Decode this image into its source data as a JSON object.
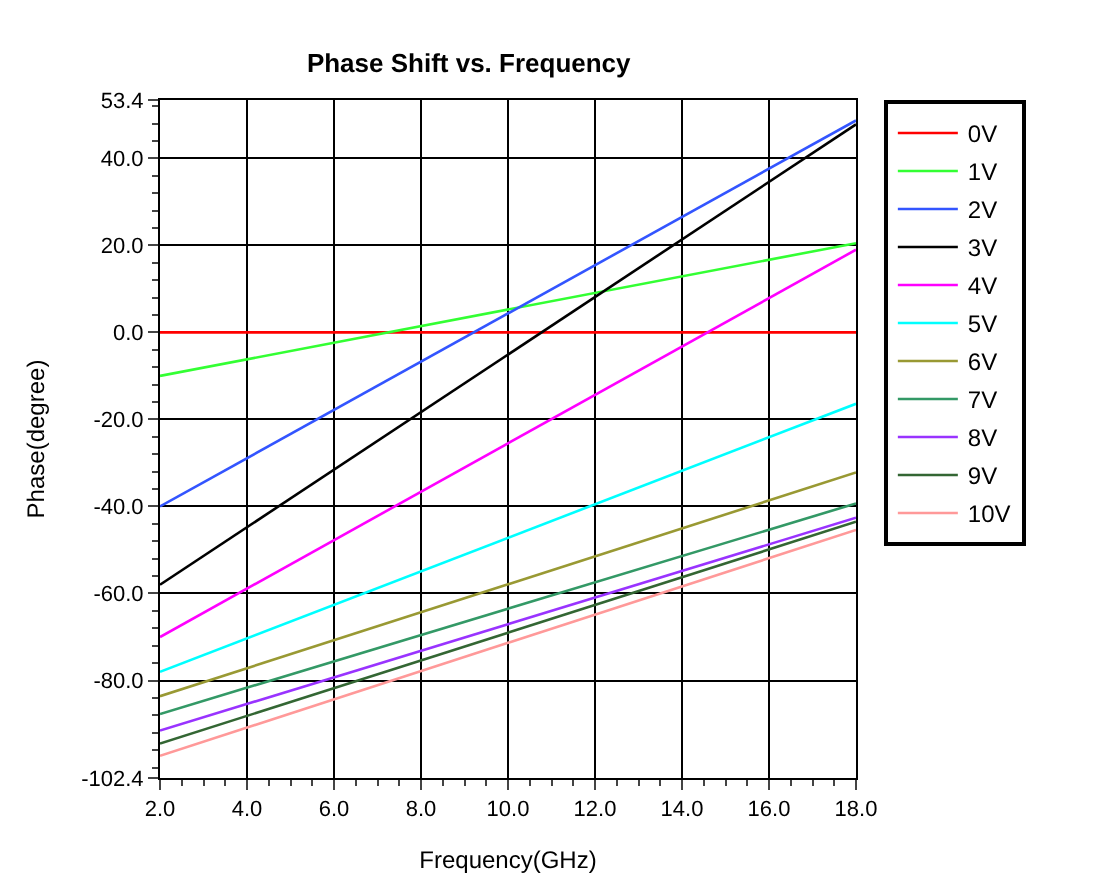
{
  "chart_data": {
    "type": "line",
    "title": "Phase Shift vs. Frequency",
    "xlabel": "Frequency(GHz)",
    "ylabel": "Phase(degree)",
    "x": [
      2,
      18
    ],
    "series": [
      {
        "name": "0V",
        "color": "#ff0000",
        "values": [
          0,
          0
        ]
      },
      {
        "name": "1V",
        "color": "#33ff33",
        "values": [
          -10,
          20.5
        ]
      },
      {
        "name": "2V",
        "color": "#3355ff",
        "values": [
          -40,
          48.7
        ]
      },
      {
        "name": "3V",
        "color": "#000000",
        "values": [
          -58,
          47.8
        ]
      },
      {
        "name": "4V",
        "color": "#ff00ff",
        "values": [
          -70,
          19
        ]
      },
      {
        "name": "5V",
        "color": "#00ffff",
        "values": [
          -78,
          -16.4
        ]
      },
      {
        "name": "6V",
        "color": "#999933",
        "values": [
          -83.6,
          -32.2
        ]
      },
      {
        "name": "7V",
        "color": "#339966",
        "values": [
          -87.7,
          -39.3
        ]
      },
      {
        "name": "8V",
        "color": "#9933ff",
        "values": [
          -91.5,
          -42.6
        ]
      },
      {
        "name": "9V",
        "color": "#336633",
        "values": [
          -94.5,
          -43.5
        ]
      },
      {
        "name": "10V",
        "color": "#ff9999",
        "values": [
          -97.3,
          -45.4
        ]
      }
    ],
    "xlim": [
      2,
      18
    ],
    "xticks": [
      {
        "value": 2,
        "label": "2.0"
      },
      {
        "value": 4,
        "label": "4.0"
      },
      {
        "value": 6,
        "label": "6.0"
      },
      {
        "value": 8,
        "label": "8.0"
      },
      {
        "value": 10,
        "label": "10.0"
      },
      {
        "value": 12,
        "label": "12.0"
      },
      {
        "value": 14,
        "label": "14.0"
      },
      {
        "value": 16,
        "label": "16.0"
      },
      {
        "value": 18,
        "label": "18.0"
      }
    ],
    "ylim": [
      -102.4,
      53.4
    ],
    "yticks": [
      {
        "value": -102.4,
        "label": "-102.4"
      },
      {
        "value": -80,
        "label": "-80.0"
      },
      {
        "value": -60,
        "label": "-60.0"
      },
      {
        "value": -40,
        "label": "-40.0"
      },
      {
        "value": -20,
        "label": "-20.0"
      },
      {
        "value": 0,
        "label": "0.0"
      },
      {
        "value": 20,
        "label": "20.0"
      },
      {
        "value": 40,
        "label": "40.0"
      },
      {
        "value": 53.4,
        "label": "53.4"
      }
    ],
    "grid": true,
    "legend": "right",
    "marker": "none",
    "line_style": "solid"
  }
}
